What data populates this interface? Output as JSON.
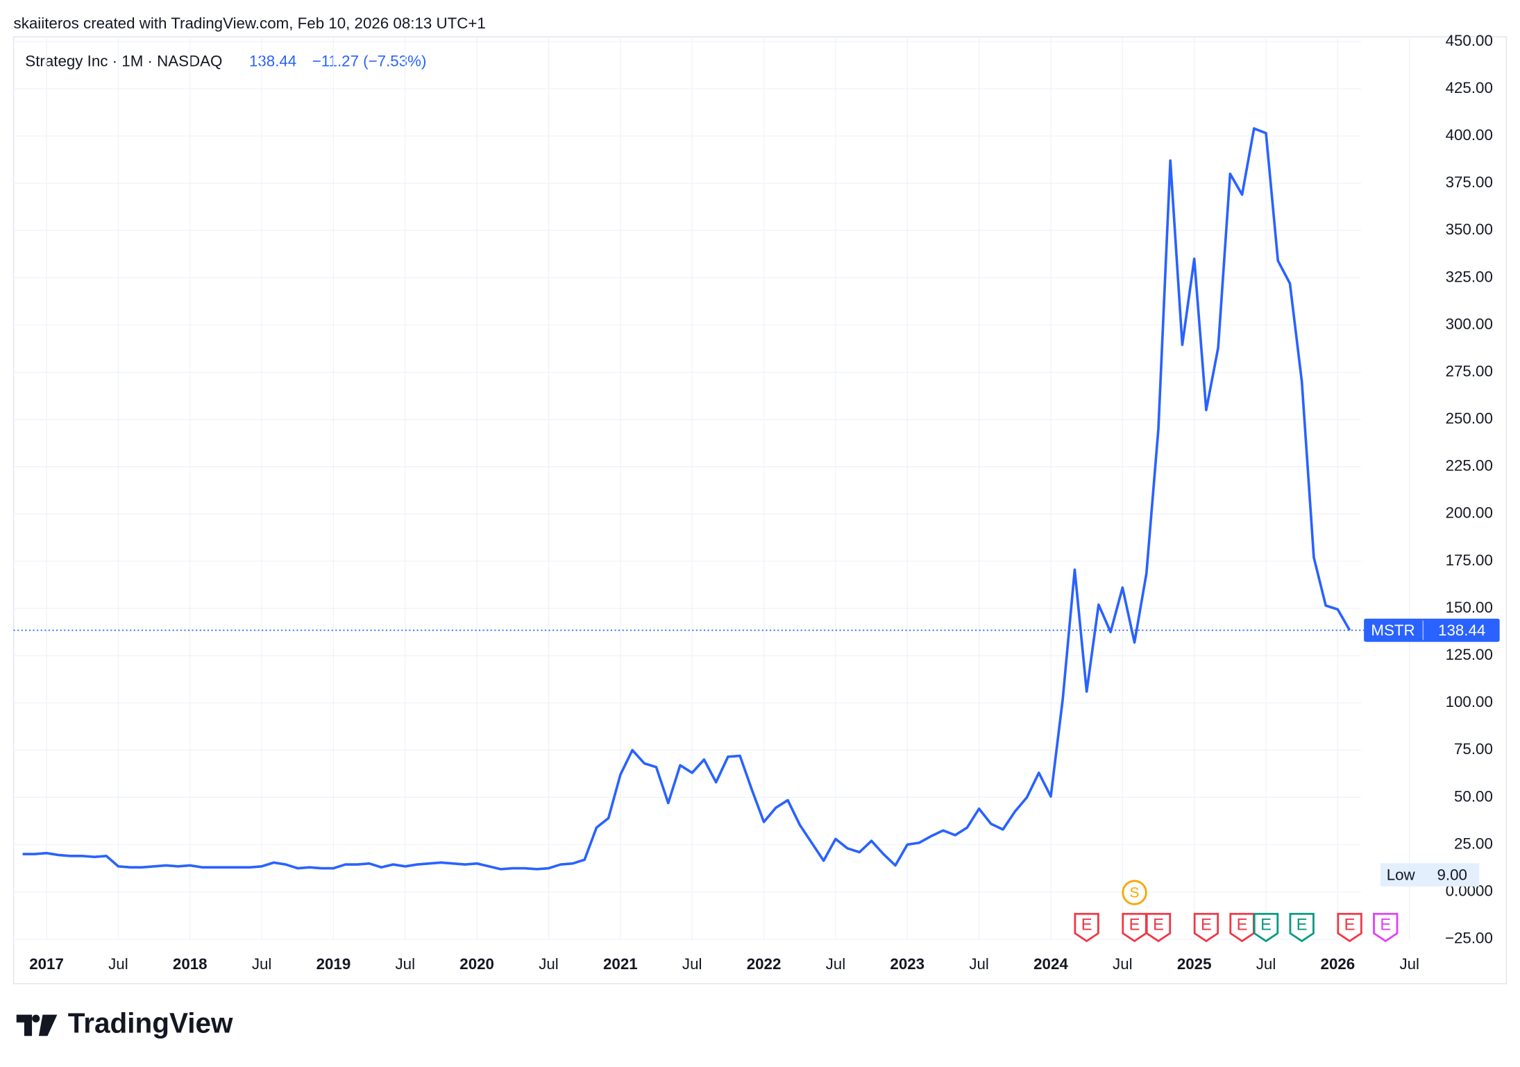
{
  "header": "skaiiteros created with TradingView.com, Feb 10, 2026 08:13 UTC+1",
  "branding": "TradingView",
  "chart_data": {
    "type": "line",
    "title": "Strategy Inc · 1M · NASDAQ",
    "last_value_label": "138.44",
    "change_label": "−11.27 (−7.53%)",
    "x": [
      "2016-11",
      "2016-12",
      "2017-01",
      "2017-02",
      "2017-03",
      "2017-04",
      "2017-05",
      "2017-06",
      "2017-07",
      "2017-08",
      "2017-09",
      "2017-10",
      "2017-11",
      "2017-12",
      "2018-01",
      "2018-02",
      "2018-03",
      "2018-04",
      "2018-05",
      "2018-06",
      "2018-07",
      "2018-08",
      "2018-09",
      "2018-10",
      "2018-11",
      "2018-12",
      "2019-01",
      "2019-02",
      "2019-03",
      "2019-04",
      "2019-05",
      "2019-06",
      "2019-07",
      "2019-08",
      "2019-09",
      "2019-10",
      "2019-11",
      "2019-12",
      "2020-01",
      "2020-02",
      "2020-03",
      "2020-04",
      "2020-05",
      "2020-06",
      "2020-07",
      "2020-08",
      "2020-09",
      "2020-10",
      "2020-11",
      "2020-12",
      "2021-01",
      "2021-02",
      "2021-03",
      "2021-04",
      "2021-05",
      "2021-06",
      "2021-07",
      "2021-08",
      "2021-09",
      "2021-10",
      "2021-11",
      "2021-12",
      "2022-01",
      "2022-02",
      "2022-03",
      "2022-04",
      "2022-05",
      "2022-06",
      "2022-07",
      "2022-08",
      "2022-09",
      "2022-10",
      "2022-11",
      "2022-12",
      "2023-01",
      "2023-02",
      "2023-03",
      "2023-04",
      "2023-05",
      "2023-06",
      "2023-07",
      "2023-08",
      "2023-09",
      "2023-10",
      "2023-11",
      "2023-12",
      "2024-01",
      "2024-02",
      "2024-03",
      "2024-04",
      "2024-05",
      "2024-06",
      "2024-07",
      "2024-08",
      "2024-09",
      "2024-10",
      "2024-11",
      "2024-12",
      "2025-01",
      "2025-02",
      "2025-03",
      "2025-04",
      "2025-05",
      "2025-06",
      "2025-07",
      "2025-08",
      "2025-09",
      "2025-10",
      "2025-11",
      "2025-12",
      "2026-01",
      "2026-02"
    ],
    "series": [
      {
        "name": "MSTR",
        "color": "#2962ff",
        "values": [
          20,
          20,
          20.5,
          19.5,
          19,
          19,
          18.5,
          19,
          13.5,
          13,
          13,
          13.5,
          14,
          13.5,
          14,
          13,
          13,
          13,
          13,
          13,
          13.5,
          15.5,
          14.5,
          12.5,
          13,
          12.5,
          12.5,
          14.5,
          14.5,
          15,
          13,
          14.5,
          13.5,
          14.5,
          15,
          15.5,
          15,
          14.5,
          15,
          13.5,
          12,
          12.5,
          12.5,
          12,
          12.5,
          14.5,
          15,
          17,
          34,
          39,
          62,
          75,
          68,
          66,
          47,
          67,
          63,
          70,
          58,
          71.5,
          72,
          54,
          37,
          44.5,
          48.5,
          35.5,
          26,
          16.5,
          28,
          23,
          21,
          27,
          20,
          14,
          25,
          26,
          29.5,
          32.5,
          30,
          34,
          44,
          36,
          33,
          42.5,
          50,
          63,
          50.5,
          102,
          170.5,
          106,
          152,
          137.5,
          161,
          132,
          168.5,
          245,
          387,
          289.5,
          335,
          255,
          288,
          380,
          369,
          404,
          401.5,
          334,
          322,
          270,
          177,
          151.5,
          149.5,
          138.44
        ]
      }
    ],
    "ylim": [
      -25.5,
      452.5
    ],
    "yticks": [
      {
        "value": 450,
        "label": "450.00"
      },
      {
        "value": 425,
        "label": "425.00"
      },
      {
        "value": 400,
        "label": "400.00"
      },
      {
        "value": 375,
        "label": "375.00"
      },
      {
        "value": 350,
        "label": "350.00"
      },
      {
        "value": 325,
        "label": "325.00"
      },
      {
        "value": 300,
        "label": "300.00"
      },
      {
        "value": 275,
        "label": "275.00"
      },
      {
        "value": 250,
        "label": "250.00"
      },
      {
        "value": 225,
        "label": "225.00"
      },
      {
        "value": 200,
        "label": "200.00"
      },
      {
        "value": 175,
        "label": "175.00"
      },
      {
        "value": 150,
        "label": "150.00"
      },
      {
        "value": 125,
        "label": "125.00"
      },
      {
        "value": 100,
        "label": "100.00"
      },
      {
        "value": 75,
        "label": "75.00"
      },
      {
        "value": 50,
        "label": "50.00"
      },
      {
        "value": 25,
        "label": "25.00"
      },
      {
        "value": 0,
        "label": "0.0000"
      },
      {
        "value": -25,
        "label": "−25.00"
      }
    ],
    "xticks": [
      {
        "value": "2017-01",
        "label": "2017"
      },
      {
        "value": "2017-07",
        "label": "Jul"
      },
      {
        "value": "2018-01",
        "label": "2018"
      },
      {
        "value": "2018-07",
        "label": "Jul"
      },
      {
        "value": "2019-01",
        "label": "2019"
      },
      {
        "value": "2019-07",
        "label": "Jul"
      },
      {
        "value": "2020-01",
        "label": "2020"
      },
      {
        "value": "2020-07",
        "label": "Jul"
      },
      {
        "value": "2021-01",
        "label": "2021"
      },
      {
        "value": "2021-07",
        "label": "Jul"
      },
      {
        "value": "2022-01",
        "label": "2022"
      },
      {
        "value": "2022-07",
        "label": "Jul"
      },
      {
        "value": "2023-01",
        "label": "2023"
      },
      {
        "value": "2023-07",
        "label": "Jul"
      },
      {
        "value": "2024-01",
        "label": "2024"
      },
      {
        "value": "2024-07",
        "label": "Jul"
      },
      {
        "value": "2025-01",
        "label": "2025"
      },
      {
        "value": "2025-07",
        "label": "Jul"
      },
      {
        "value": "2026-01",
        "label": "2026"
      },
      {
        "value": "2026-07",
        "label": "Jul"
      }
    ],
    "grid": true,
    "low_label": "Low",
    "low_value": {
      "value": 9,
      "label": "9.00"
    },
    "events": [
      {
        "x": "2024-08",
        "label": "S",
        "color": "#f7a600"
      },
      {
        "x": "2024-04",
        "label": "E",
        "color": "#f23645"
      },
      {
        "x": "2024-08",
        "label": "E",
        "color": "#f23645"
      },
      {
        "x": "2024-10",
        "label": "E",
        "color": "#f23645"
      },
      {
        "x": "2025-02",
        "label": "E",
        "color": "#f23645"
      },
      {
        "x": "2025-05",
        "label": "E",
        "color": "#f23645"
      },
      {
        "x": "2025-07",
        "label": "E",
        "color": "#089981"
      },
      {
        "x": "2025-10",
        "label": "E",
        "color": "#089981"
      },
      {
        "x": "2026-02",
        "label": "E",
        "color": "#f23645"
      },
      {
        "x": "2026-05",
        "label": "E",
        "color": "#e040fb"
      }
    ]
  }
}
